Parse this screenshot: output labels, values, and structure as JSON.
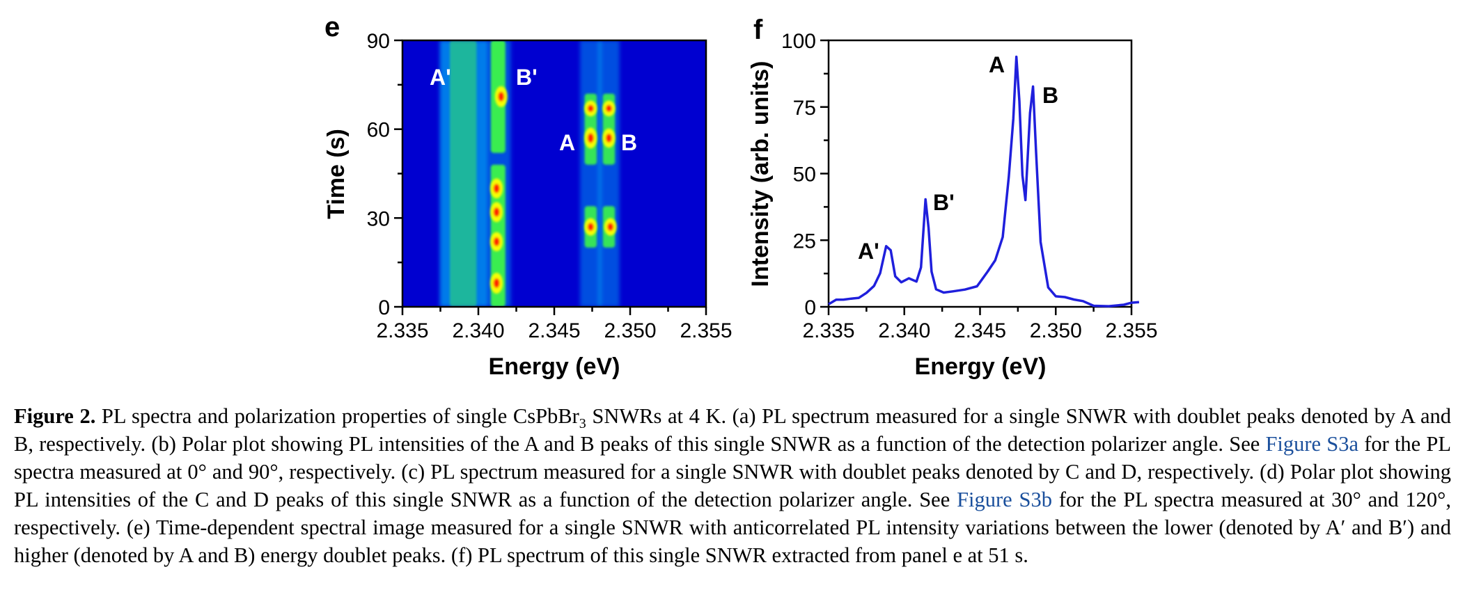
{
  "panels": {
    "e": {
      "letter": "e",
      "xlabel": "Energy (eV)",
      "ylabel": "Time (s)",
      "x_ticks": [
        "2.335",
        "2.340",
        "2.345",
        "2.350",
        "2.355"
      ],
      "y_ticks": [
        "0",
        "30",
        "60",
        "90"
      ],
      "annotations": [
        "A'",
        "B'",
        "A",
        "B"
      ]
    },
    "f": {
      "letter": "f",
      "xlabel": "Energy (eV)",
      "ylabel": "Intensity (arb. units)",
      "x_ticks": [
        "2.335",
        "2.340",
        "2.345",
        "2.350",
        "2.355"
      ],
      "y_ticks": [
        "0",
        "25",
        "50",
        "75",
        "100"
      ],
      "annotations": [
        "A'",
        "B'",
        "A",
        "B"
      ]
    }
  },
  "chart_data": [
    {
      "type": "heatmap",
      "xlim": [
        2.335,
        2.355
      ],
      "ylim": [
        0,
        90
      ],
      "x_unit": "eV",
      "y_unit": "s",
      "colormap": [
        "#0000d0",
        "#00e0ff",
        "#40ff40",
        "#ffff00",
        "#ff2000",
        "#d00000"
      ],
      "lines": [
        {
          "label": "A'",
          "center": 2.339,
          "width": 0.0011
        },
        {
          "label": "B'",
          "center": 2.3413,
          "width": 0.0006
        },
        {
          "label": "A",
          "center": 2.3474,
          "width": 0.0005
        },
        {
          "label": "B",
          "center": 2.3486,
          "width": 0.0005
        }
      ],
      "hot_spots": [
        {
          "x": 2.3415,
          "y": 71,
          "level": 1.0
        },
        {
          "x": 2.3412,
          "y": 40,
          "level": 0.95
        },
        {
          "x": 2.3412,
          "y": 32,
          "level": 0.95
        },
        {
          "x": 2.3412,
          "y": 22,
          "level": 0.9
        },
        {
          "x": 2.3412,
          "y": 8,
          "level": 1.0
        },
        {
          "x": 2.3474,
          "y": 57,
          "level": 1.0
        },
        {
          "x": 2.3486,
          "y": 57,
          "level": 0.9
        },
        {
          "x": 2.3474,
          "y": 67,
          "level": 0.7
        },
        {
          "x": 2.3486,
          "y": 67,
          "level": 0.7
        },
        {
          "x": 2.3474,
          "y": 27,
          "level": 0.8
        },
        {
          "x": 2.3487,
          "y": 27,
          "level": 0.8
        }
      ]
    },
    {
      "type": "line",
      "xlim": [
        2.335,
        2.355
      ],
      "ylim": [
        0,
        100
      ],
      "color": "#1f1fdc",
      "series": [
        {
          "x": [
            2.335,
            2.3355,
            2.336,
            2.3365,
            2.337,
            2.3375,
            2.338,
            2.3384,
            2.3388,
            2.3391,
            2.3394,
            2.3398,
            2.3403,
            2.3408,
            2.3411,
            2.3414,
            2.3416,
            2.3418,
            2.3421,
            2.3426,
            2.3432,
            2.344,
            2.3448,
            2.3455,
            2.346,
            2.3465,
            2.3469,
            2.3472,
            2.3474,
            2.3476,
            2.3478,
            2.348,
            2.3483,
            2.3485,
            2.3487,
            2.349,
            2.3495,
            2.35,
            2.3506,
            2.3512,
            2.3518,
            2.3525,
            2.3535,
            2.3545,
            2.355,
            2.3555
          ],
          "y": [
            1,
            2,
            2,
            3,
            4,
            6,
            8,
            12,
            22,
            21,
            12,
            10,
            11,
            9,
            14,
            40,
            30,
            14,
            7,
            5,
            5,
            6,
            8,
            14,
            18,
            26,
            48,
            70,
            94,
            78,
            50,
            40,
            72,
            82,
            58,
            25,
            8,
            4,
            3,
            2,
            2,
            1,
            1,
            1,
            1,
            1
          ]
        }
      ]
    }
  ],
  "caption": {
    "label": "Figure 2.",
    "part1": " PL spectra and polarization properties of single CsPbBr",
    "sub": "3",
    "part2": " SNWRs at 4 K. (a) PL spectrum measured for a single SNWR with doublet peaks denoted by A and B, respectively. (b) Polar plot showing PL intensities of the A and B peaks of this single SNWR as a function of the detection polarizer angle. See ",
    "link1": "Figure S3a",
    "part3": " for the PL spectra measured at 0° and 90°, respectively. (c) PL spectrum measured for a single SNWR with doublet peaks denoted by C and D, respectively. (d) Polar plot showing PL intensities of the C and D peaks of this single SNWR as a function of the detection polarizer angle. See ",
    "link2": "Figure S3b",
    "part4": " for the PL spectra measured at 30° and 120°, respectively. (e) Time-dependent spectral image measured for a single SNWR with anticorrelated PL intensity variations between the lower (denoted by A′ and B′) and higher (denoted by A and B) energy doublet peaks. (f) PL spectrum of this single SNWR extracted from panel e at 51 s."
  }
}
